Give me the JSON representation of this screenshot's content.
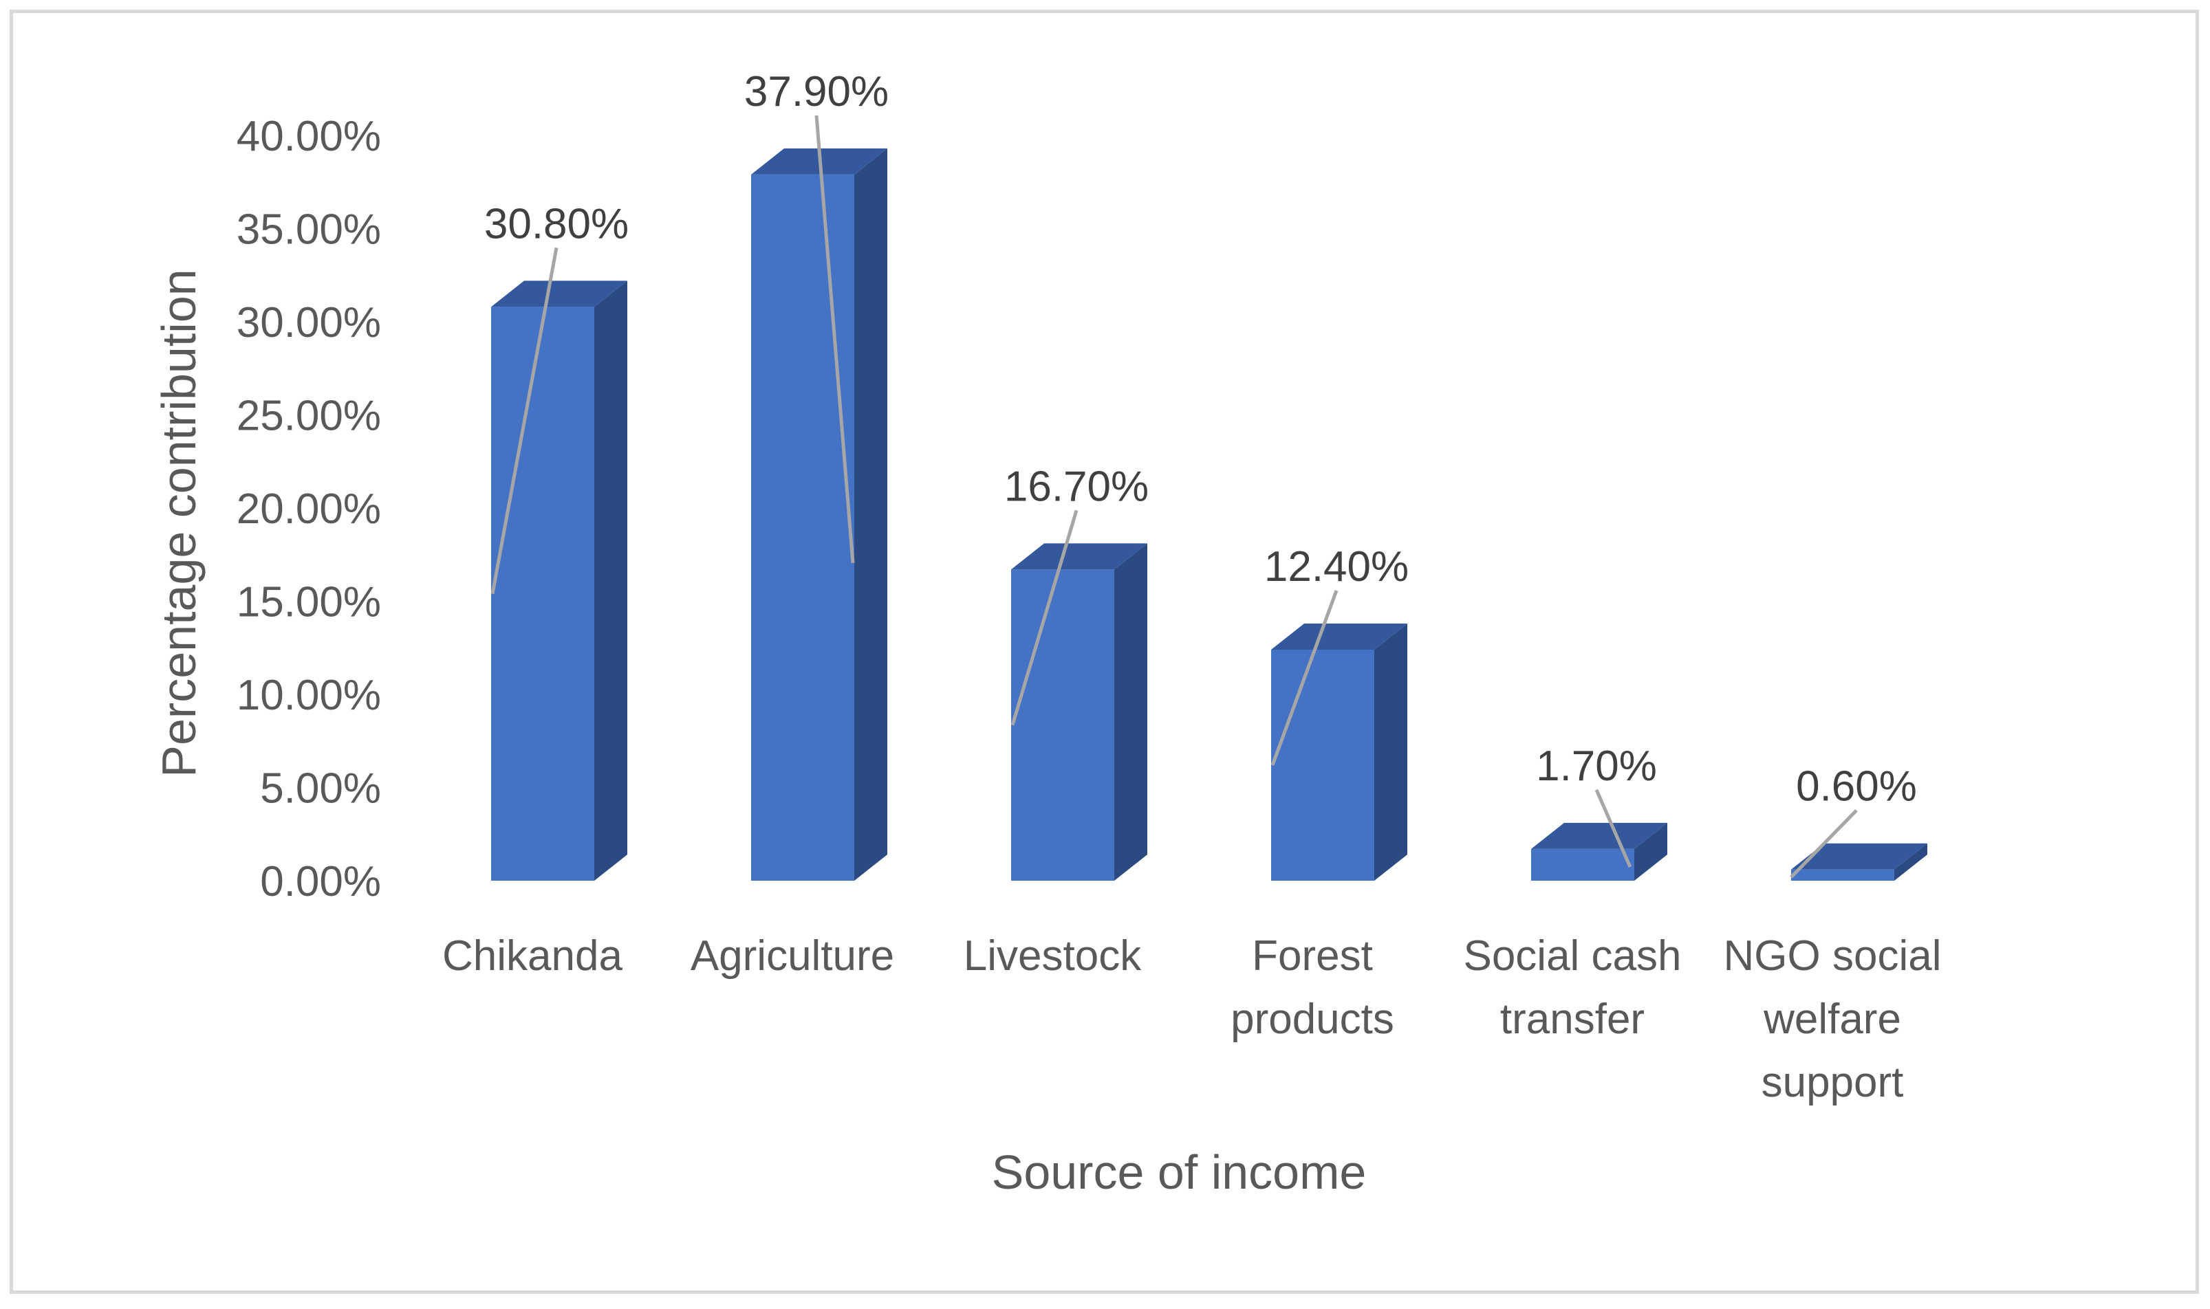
{
  "chart_data": {
    "type": "bar",
    "style": "3d-column",
    "categories": [
      "Chikanda",
      "Agriculture",
      "Livestock",
      "Forest products",
      "Social cash transfer",
      "NGO social welfare support"
    ],
    "category_lines": [
      [
        "Chikanda"
      ],
      [
        "Agriculture"
      ],
      [
        "Livestock"
      ],
      [
        "Forest",
        "products"
      ],
      [
        "Social cash",
        "transfer"
      ],
      [
        "NGO social",
        "welfare",
        "support"
      ]
    ],
    "values": [
      30.8,
      37.9,
      16.7,
      12.4,
      1.7,
      0.6
    ],
    "data_labels": [
      "30.80%",
      "37.90%",
      "16.70%",
      "12.40%",
      "1.70%",
      "0.60%"
    ],
    "xlabel": "Source of income",
    "ylabel": "Percentage contribution",
    "ylim": [
      0,
      40
    ],
    "y_ticks": [
      0,
      5,
      10,
      15,
      20,
      25,
      30,
      35,
      40
    ],
    "y_tick_labels": [
      "0.00%",
      "5.00%",
      "10.00%",
      "15.00%",
      "20.00%",
      "25.00%",
      "30.00%",
      "35.00%",
      "40.00%"
    ],
    "grid": false,
    "legend": "none",
    "colors": {
      "bar_front": "#4472c4",
      "bar_side": "#2c4a82",
      "bar_top": "#34589c",
      "leader_line": "#a6a6a6",
      "text": "#595959",
      "border": "#d9d9d9"
    }
  }
}
